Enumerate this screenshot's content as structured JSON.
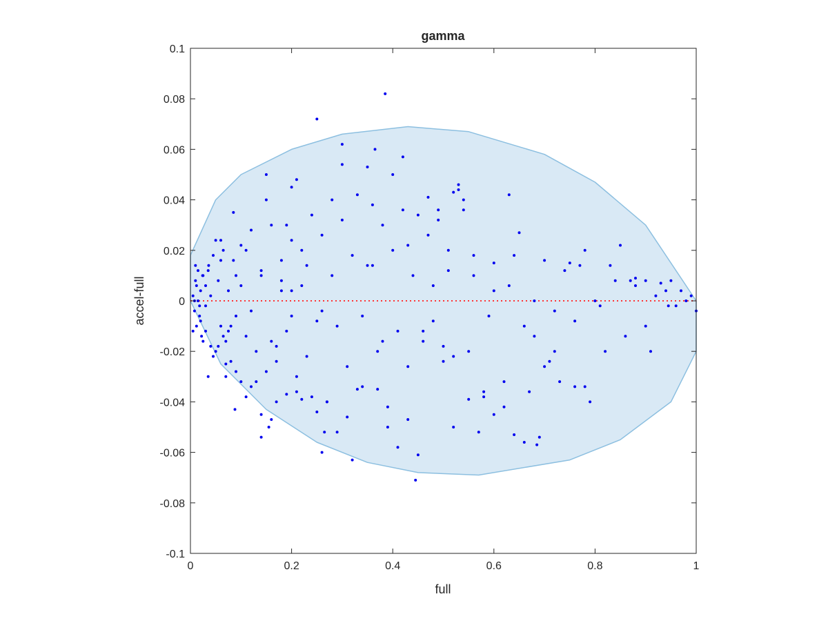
{
  "chart_data": {
    "type": "scatter",
    "title": "gamma",
    "xlabel": "full",
    "ylabel": "accel-full",
    "xlim": [
      0,
      1
    ],
    "ylim": [
      -0.1,
      0.1
    ],
    "xticks": [
      0,
      0.2,
      0.4,
      0.6,
      0.8,
      1
    ],
    "xtick_labels": [
      "0",
      "0.2",
      "0.4",
      "0.6",
      "0.8",
      "1"
    ],
    "yticks": [
      -0.1,
      -0.08,
      -0.06,
      -0.04,
      -0.02,
      0,
      0.02,
      0.04,
      0.06,
      0.08,
      0.1
    ],
    "ytick_labels": [
      "-0.1",
      "-0.08",
      "-0.06",
      "-0.04",
      "-0.02",
      "0",
      "0.02",
      "0.04",
      "0.06",
      "0.08",
      "0.1"
    ],
    "grid": false,
    "legend": "none",
    "reference_line": {
      "y": 0,
      "style": "dotted",
      "color": "#ff3333"
    },
    "region": {
      "shape": "ellipse",
      "boundary_top": [
        [
          0,
          0.018
        ],
        [
          0.05,
          0.04
        ],
        [
          0.1,
          0.05
        ],
        [
          0.2,
          0.06
        ],
        [
          0.3,
          0.066
        ],
        [
          0.43,
          0.069
        ],
        [
          0.55,
          0.067
        ],
        [
          0.7,
          0.058
        ],
        [
          0.8,
          0.047
        ],
        [
          0.9,
          0.03
        ],
        [
          1.0,
          0.0
        ]
      ],
      "boundary_bottom": [
        [
          1.0,
          -0.02
        ],
        [
          0.95,
          -0.04
        ],
        [
          0.85,
          -0.055
        ],
        [
          0.75,
          -0.063
        ],
        [
          0.57,
          -0.069
        ],
        [
          0.45,
          -0.068
        ],
        [
          0.35,
          -0.064
        ],
        [
          0.25,
          -0.056
        ],
        [
          0.15,
          -0.043
        ],
        [
          0.06,
          -0.025
        ],
        [
          0,
          0.0
        ]
      ],
      "fill": "#d9e9f5",
      "stroke": "#8cbfe0"
    },
    "point_color": "#0000ee",
    "series": [
      {
        "x": [
          0.005,
          0.008,
          0.01,
          0.012,
          0.015,
          0.018,
          0.02,
          0.022,
          0.025,
          0.03,
          0.005,
          0.01,
          0.015,
          0.02,
          0.025,
          0.03,
          0.035,
          0.04,
          0.008,
          0.012,
          0.018,
          0.024,
          0.03,
          0.036,
          0.045,
          0.05,
          0.055,
          0.06,
          0.065,
          0.07,
          0.075,
          0.08,
          0.085,
          0.09,
          0.1,
          0.11,
          0.12,
          0.13,
          0.14,
          0.15,
          0.16,
          0.17,
          0.18,
          0.19,
          0.2,
          0.21,
          0.22,
          0.23,
          0.24,
          0.25,
          0.05,
          0.07,
          0.09,
          0.11,
          0.13,
          0.15,
          0.17,
          0.19,
          0.21,
          0.23,
          0.04,
          0.06,
          0.08,
          0.1,
          0.12,
          0.14,
          0.16,
          0.18,
          0.2,
          0.22,
          0.26,
          0.27,
          0.28,
          0.29,
          0.3,
          0.31,
          0.32,
          0.33,
          0.34,
          0.35,
          0.36,
          0.37,
          0.38,
          0.39,
          0.4,
          0.41,
          0.42,
          0.43,
          0.44,
          0.45,
          0.46,
          0.47,
          0.48,
          0.49,
          0.5,
          0.51,
          0.52,
          0.53,
          0.54,
          0.55,
          0.56,
          0.58,
          0.6,
          0.62,
          0.64,
          0.66,
          0.68,
          0.7,
          0.72,
          0.74,
          0.76,
          0.78,
          0.8,
          0.82,
          0.84,
          0.86,
          0.88,
          0.9,
          0.92,
          0.94,
          0.96,
          0.98,
          1.0,
          0.385,
          0.25,
          0.3,
          0.365,
          0.42,
          0.4,
          0.445,
          0.26,
          0.32,
          0.14,
          0.16,
          0.155,
          0.088,
          0.265,
          0.25,
          0.66,
          0.685,
          0.64,
          0.69,
          0.79,
          0.63,
          0.52,
          0.53,
          0.54,
          0.47,
          0.49,
          0.3,
          0.35,
          0.21,
          0.2,
          0.15,
          0.085,
          0.06,
          0.52,
          0.51,
          0.55,
          0.6,
          0.62,
          0.65,
          0.7,
          0.75,
          0.77,
          0.83,
          0.85,
          0.88,
          0.9,
          0.93,
          0.95,
          0.97,
          0.99,
          0.78,
          0.73,
          0.71,
          0.67,
          0.6,
          0.58,
          0.57,
          0.45,
          0.43,
          0.41,
          0.39,
          0.37,
          0.33,
          0.31,
          0.29,
          0.27,
          0.24,
          0.22,
          0.19,
          0.17,
          0.14,
          0.12,
          0.11,
          0.1,
          0.09,
          0.07,
          0.035,
          0.045,
          0.055,
          0.065,
          0.075,
          0.2,
          0.18,
          0.26,
          0.28,
          0.34,
          0.36,
          0.38,
          0.43,
          0.46,
          0.48,
          0.5,
          0.56,
          0.59,
          0.63,
          0.68,
          0.72,
          0.76,
          0.81,
          0.87,
          0.91,
          0.945
        ],
        "y": [
          0.002,
          -0.004,
          0.008,
          -0.01,
          0.012,
          -0.006,
          0.004,
          -0.014,
          0.01,
          -0.002,
          -0.012,
          0.014,
          0.0,
          -0.008,
          -0.016,
          0.006,
          0.012,
          -0.018,
          0.0,
          0.006,
          -0.002,
          0.01,
          -0.012,
          0.014,
          0.018,
          -0.02,
          0.008,
          -0.01,
          0.02,
          -0.016,
          0.004,
          -0.024,
          0.016,
          -0.006,
          0.022,
          -0.014,
          0.028,
          -0.02,
          0.01,
          -0.028,
          0.03,
          -0.018,
          0.016,
          -0.012,
          0.024,
          -0.03,
          0.006,
          -0.022,
          0.034,
          -0.008,
          0.024,
          -0.03,
          0.01,
          0.02,
          -0.032,
          0.04,
          -0.024,
          0.03,
          -0.036,
          0.014,
          0.002,
          0.016,
          -0.01,
          0.006,
          -0.004,
          0.012,
          -0.016,
          0.004,
          -0.006,
          0.02,
          0.026,
          -0.04,
          0.04,
          -0.01,
          0.032,
          -0.026,
          0.018,
          0.042,
          -0.034,
          0.014,
          0.038,
          -0.02,
          0.03,
          -0.042,
          0.02,
          -0.012,
          0.036,
          -0.026,
          0.01,
          0.034,
          -0.016,
          0.026,
          -0.008,
          0.032,
          -0.018,
          0.012,
          -0.022,
          0.044,
          0.036,
          -0.02,
          0.01,
          -0.038,
          0.004,
          -0.032,
          0.018,
          -0.01,
          0.0,
          -0.026,
          -0.004,
          0.012,
          -0.034,
          0.02,
          0.0,
          -0.02,
          0.008,
          -0.014,
          0.006,
          -0.01,
          0.002,
          0.004,
          -0.002,
          0.0,
          -0.004,
          0.082,
          0.072,
          0.062,
          0.06,
          0.057,
          0.05,
          -0.071,
          -0.06,
          -0.063,
          -0.054,
          -0.047,
          -0.05,
          -0.043,
          -0.052,
          -0.044,
          -0.056,
          -0.057,
          -0.053,
          -0.054,
          -0.04,
          0.042,
          0.043,
          0.046,
          0.04,
          0.041,
          0.036,
          0.054,
          0.053,
          0.048,
          0.045,
          0.05,
          0.035,
          0.024,
          -0.05,
          0.02,
          -0.039,
          0.015,
          -0.042,
          0.027,
          0.016,
          0.015,
          0.014,
          0.014,
          0.022,
          0.009,
          0.008,
          0.007,
          0.008,
          0.004,
          0.002,
          -0.034,
          -0.032,
          -0.024,
          -0.036,
          -0.045,
          -0.036,
          -0.052,
          -0.061,
          -0.047,
          -0.058,
          -0.05,
          -0.035,
          -0.035,
          -0.046,
          -0.052,
          -0.04,
          -0.038,
          -0.039,
          -0.037,
          -0.04,
          -0.045,
          -0.034,
          -0.038,
          -0.032,
          -0.028,
          -0.025,
          -0.03,
          -0.022,
          -0.018,
          -0.014,
          -0.012,
          0.004,
          0.008,
          -0.004,
          0.01,
          -0.006,
          0.014,
          -0.016,
          0.022,
          -0.012,
          0.006,
          -0.024,
          0.018,
          -0.006,
          0.006,
          -0.014,
          -0.02,
          -0.008,
          -0.002,
          0.008,
          -0.02,
          -0.002
        ]
      }
    ]
  }
}
